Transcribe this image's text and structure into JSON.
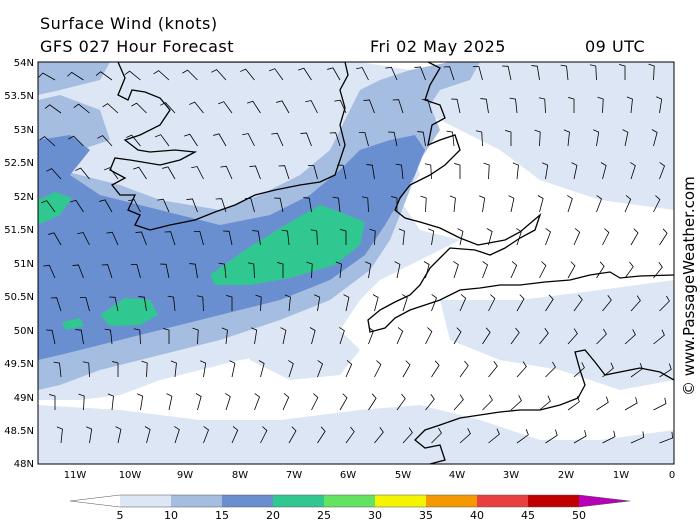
{
  "header": {
    "line1": "Surface Wind (knots)",
    "model_line": "GFS 027 Hour Forecast",
    "date": "Fri 02 May 2025",
    "time": "09 UTC"
  },
  "map": {
    "lat_labels": [
      "54N",
      "53.5N",
      "53N",
      "52.5N",
      "52N",
      "51.5N",
      "51N",
      "50.5N",
      "50N",
      "49.5N",
      "49N",
      "48.5N",
      "48N"
    ],
    "lon_labels": [
      "11W",
      "10W",
      "9W",
      "8W",
      "7W",
      "6W",
      "5W",
      "4W",
      "3W",
      "2W",
      "1W",
      "0"
    ],
    "land_color": "#ffffff",
    "coast_color": "#000000"
  },
  "colorbar": {
    "ticks": [
      "5",
      "10",
      "15",
      "20",
      "25",
      "30",
      "35",
      "40",
      "45",
      "50"
    ],
    "colors": [
      "#ffffff",
      "#dde6f4",
      "#a5bde0",
      "#6a8fd0",
      "#30c890",
      "#62e462",
      "#f4f400",
      "#f49a00",
      "#e84040",
      "#c00000",
      "#b800b8"
    ]
  },
  "shading": {
    "light": "#dde6f4",
    "medium": "#a5bde0",
    "dark": "#6a8fd0",
    "green": "#30c890"
  },
  "credit": "© www.PassageWeather.com"
}
